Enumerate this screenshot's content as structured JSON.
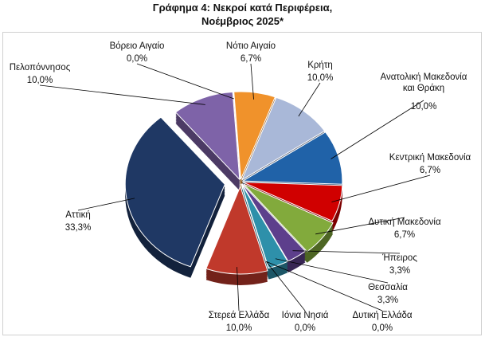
{
  "chart_data": {
    "type": "pie",
    "title": [
      "Γράφημα 4: Νεκροί κατά Περιφέρεια,",
      "Νοέμβριος 2025*"
    ],
    "categories": [
      "Νότιο Αιγαίο",
      "Κρήτη",
      "Ανατολική Μακεδονία και Θράκη",
      "Κεντρική Μακεδονία",
      "Δυτική Μακεδονία",
      "Ήπειρος",
      "Θεσσαλία",
      "Δυτική Ελλάδα",
      "Ιόνια Νησιά",
      "Στερεά Ελλάδα",
      "Αττική",
      "Πελοπόννησος",
      "Βόρειο Αιγαίο"
    ],
    "values": [
      6.7,
      10.0,
      10.0,
      6.7,
      6.7,
      3.3,
      3.3,
      0.0,
      0.0,
      10.0,
      33.3,
      10.0,
      0.0
    ],
    "value_labels": [
      "6,7%",
      "10,0%",
      "10,0%",
      "6,7%",
      "6,7%",
      "3,3%",
      "3,3%",
      "0,0%",
      "0,0%",
      "10,0%",
      "33,3%",
      "10,0%",
      "0,0%"
    ],
    "colors": [
      "#f0922b",
      "#a9b8d8",
      "#2062a8",
      "#d00000",
      "#82aa3c",
      "#5d3f8c",
      "#2e90aa",
      "#5a90d2",
      "#c55a11",
      "#c0392b",
      "#1f3864",
      "#7e63a8",
      "#c8c8c8"
    ]
  }
}
